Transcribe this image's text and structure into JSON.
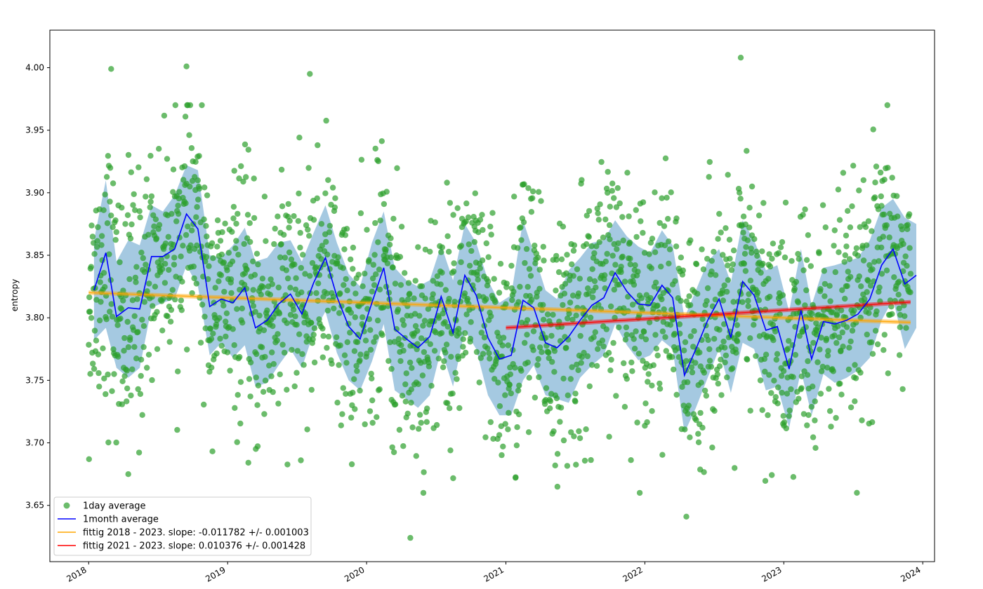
{
  "chart_data": {
    "type": "scatter",
    "title": "",
    "xlabel": "",
    "ylabel": "entropy",
    "xlim": [
      "2017-09-21",
      "2024-02-01"
    ],
    "ylim": [
      3.605,
      4.03
    ],
    "grid": false,
    "legend_position": "bottom-left",
    "x_ticks": [
      "2018",
      "2019",
      "2020",
      "2021",
      "2022",
      "2023",
      "2024"
    ],
    "y_ticks": [
      3.65,
      3.7,
      3.75,
      3.8,
      3.85,
      3.9,
      3.95,
      4.0
    ],
    "colors": {
      "daily": "#2ca02c",
      "monthly": "#0000ff",
      "band": "#1f77b4",
      "fit_2018": "#ffa500",
      "fit_2021": "#ff0000"
    },
    "legend": [
      {
        "label": "1day average",
        "kind": "marker",
        "color": "#2ca02c"
      },
      {
        "label": "1month average",
        "kind": "line",
        "color": "#0000ff"
      },
      {
        "label": "fittig 2018 - 2023. slope: -0.011782 +/- 0.001003",
        "kind": "line",
        "color": "#ffa500"
      },
      {
        "label": "fittig 2021 - 2023. slope: 0.010376 +/- 0.001428",
        "kind": "line",
        "color": "#ff0000"
      }
    ],
    "monthly_average": {
      "name": "1month average",
      "x": [
        "2018-01",
        "2018-02",
        "2018-03",
        "2018-04",
        "2018-05",
        "2018-06",
        "2018-07",
        "2018-08",
        "2018-09",
        "2018-10",
        "2018-11",
        "2018-12",
        "2019-01",
        "2019-02",
        "2019-03",
        "2019-04",
        "2019-05",
        "2019-06",
        "2019-07",
        "2019-08",
        "2019-09",
        "2019-10",
        "2019-11",
        "2019-12",
        "2020-01",
        "2020-02",
        "2020-03",
        "2020-04",
        "2020-05",
        "2020-06",
        "2020-07",
        "2020-08",
        "2020-09",
        "2020-10",
        "2020-11",
        "2020-12",
        "2021-01",
        "2021-02",
        "2021-03",
        "2021-04",
        "2021-05",
        "2021-06",
        "2021-07",
        "2021-08",
        "2021-09",
        "2021-10",
        "2021-11",
        "2021-12",
        "2022-01",
        "2022-02",
        "2022-03",
        "2022-04",
        "2022-05",
        "2022-06",
        "2022-07",
        "2022-08",
        "2022-09",
        "2022-10",
        "2022-11",
        "2022-12",
        "2023-01",
        "2023-02",
        "2023-03",
        "2023-04",
        "2023-05",
        "2023-06",
        "2023-07",
        "2023-08",
        "2023-09",
        "2023-10",
        "2023-11",
        "2023-12"
      ],
      "y": [
        3.822,
        3.852,
        3.801,
        3.808,
        3.807,
        3.849,
        3.849,
        3.855,
        3.883,
        3.871,
        3.809,
        3.815,
        3.812,
        3.824,
        3.792,
        3.798,
        3.811,
        3.819,
        3.803,
        3.828,
        3.848,
        3.817,
        3.793,
        3.783,
        3.812,
        3.84,
        3.791,
        3.783,
        3.776,
        3.785,
        3.817,
        3.788,
        3.834,
        3.818,
        3.784,
        3.767,
        3.77,
        3.814,
        3.808,
        3.78,
        3.776,
        3.785,
        3.798,
        3.81,
        3.816,
        3.836,
        3.821,
        3.811,
        3.81,
        3.826,
        3.816,
        3.754,
        3.775,
        3.798,
        3.815,
        3.784,
        3.829,
        3.818,
        3.79,
        3.793,
        3.759,
        3.806,
        3.767,
        3.797,
        3.795,
        3.798,
        3.803,
        3.815,
        3.842,
        3.855,
        3.827,
        3.834
      ]
    },
    "monthly_band": {
      "upper": [
        3.862,
        3.91,
        3.845,
        3.862,
        3.858,
        3.89,
        3.885,
        3.898,
        3.922,
        3.918,
        3.85,
        3.848,
        3.858,
        3.872,
        3.845,
        3.848,
        3.86,
        3.862,
        3.845,
        3.868,
        3.89,
        3.86,
        3.835,
        3.825,
        3.86,
        3.885,
        3.84,
        3.83,
        3.825,
        3.83,
        3.858,
        3.83,
        3.875,
        3.86,
        3.83,
        3.812,
        3.818,
        3.878,
        3.852,
        3.822,
        3.815,
        3.838,
        3.848,
        3.86,
        3.862,
        3.878,
        3.865,
        3.857,
        3.852,
        3.87,
        3.858,
        3.8,
        3.822,
        3.845,
        3.855,
        3.828,
        3.878,
        3.862,
        3.838,
        3.842,
        3.805,
        3.855,
        3.81,
        3.84,
        3.842,
        3.845,
        3.848,
        3.862,
        3.888,
        3.895,
        3.88,
        3.875
      ],
      "lower": [
        3.782,
        3.792,
        3.76,
        3.752,
        3.76,
        3.808,
        3.812,
        3.815,
        3.842,
        3.825,
        3.77,
        3.78,
        3.768,
        3.778,
        3.745,
        3.748,
        3.762,
        3.775,
        3.76,
        3.788,
        3.805,
        3.772,
        3.75,
        3.742,
        3.765,
        3.795,
        3.742,
        3.735,
        3.728,
        3.738,
        3.775,
        3.745,
        3.79,
        3.775,
        3.738,
        3.722,
        3.722,
        3.75,
        3.762,
        3.738,
        3.735,
        3.732,
        3.752,
        3.762,
        3.77,
        3.795,
        3.778,
        3.766,
        3.77,
        3.782,
        3.775,
        3.708,
        3.728,
        3.752,
        3.775,
        3.74,
        3.78,
        3.775,
        3.742,
        3.745,
        3.712,
        3.758,
        3.722,
        3.755,
        3.748,
        3.752,
        3.758,
        3.768,
        3.798,
        3.815,
        3.775,
        3.792
      ]
    },
    "daily_average": {
      "name": "1day average",
      "count": 2160,
      "x_range": [
        "2018-01-01",
        "2023-11-30"
      ],
      "noted_points": [
        {
          "x": "2018-03-01",
          "y": 3.999
        },
        {
          "x": "2018-09-15",
          "y": 4.001
        },
        {
          "x": "2019-08-05",
          "y": 3.995
        },
        {
          "x": "2022-09-10",
          "y": 4.008
        },
        {
          "x": "2020-04-25",
          "y": 3.624
        },
        {
          "x": "2022-04-20",
          "y": 3.641
        },
        {
          "x": "2018-01-02",
          "y": 3.687
        },
        {
          "x": "2018-04-15",
          "y": 3.675
        }
      ]
    },
    "fits": [
      {
        "name": "fittig 2018 - 2023. slope: -0.011782 +/- 0.001003",
        "x": [
          "2018-01-01",
          "2023-11-30"
        ],
        "y": [
          3.8201,
          3.7963
        ],
        "slope": -0.011782,
        "slope_err": 0.001003
      },
      {
        "name": "fittig 2021 - 2023. slope: 0.010376 +/- 0.001428",
        "x": [
          "2021-01-01",
          "2023-11-30"
        ],
        "y": [
          3.792,
          3.8126
        ],
        "slope": 0.010376,
        "slope_err": 0.001428
      }
    ]
  }
}
